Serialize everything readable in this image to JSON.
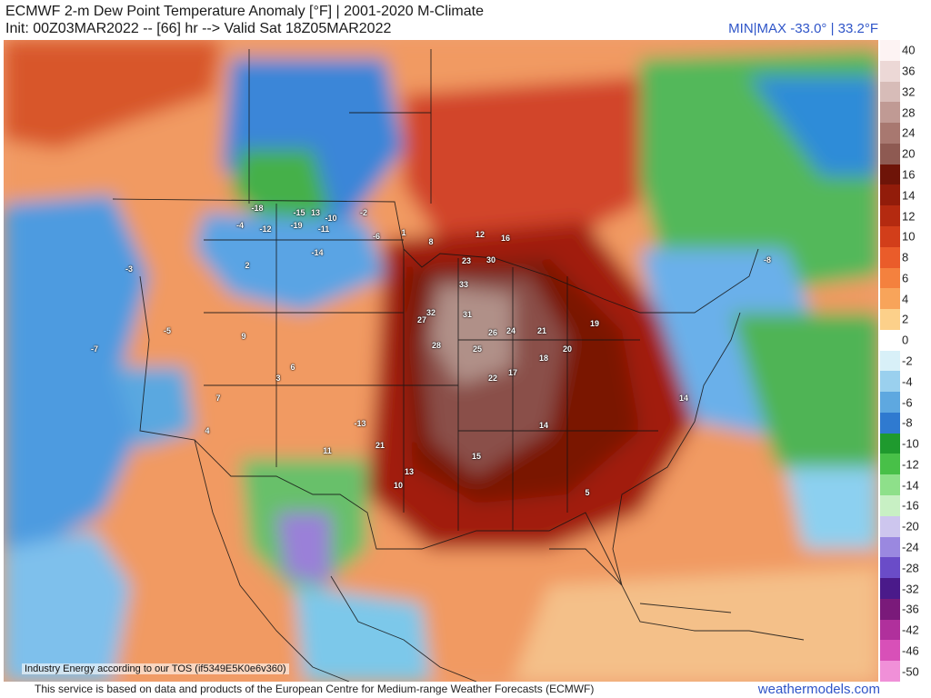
{
  "header": {
    "title": "ECMWF 2-m Dew Point Temperature Anomaly [°F] | 2001-2020 M-Climate",
    "init_line": "Init: 00Z03MAR2022 -- [66] hr --> Valid Sat 18Z05MAR2022",
    "minmax": "MIN|MAX -33.0° | 33.2°F"
  },
  "map": {
    "tos_notice": "Industry Energy according to our TOS (if5349E5K0e6v360)",
    "region": "North America",
    "labels": [
      {
        "text": "-18"
      },
      {
        "text": "-15"
      },
      {
        "text": "13"
      },
      {
        "text": "-10"
      },
      {
        "text": "-19"
      },
      {
        "text": "-14"
      },
      {
        "text": "-11"
      },
      {
        "text": "-12"
      },
      {
        "text": "-4"
      },
      {
        "text": "-6"
      },
      {
        "text": "-2"
      },
      {
        "text": "1"
      },
      {
        "text": "8"
      },
      {
        "text": "12"
      },
      {
        "text": "16"
      },
      {
        "text": "23"
      },
      {
        "text": "30"
      },
      {
        "text": "33"
      },
      {
        "text": "32"
      },
      {
        "text": "31"
      },
      {
        "text": "27"
      },
      {
        "text": "28"
      },
      {
        "text": "26"
      },
      {
        "text": "25"
      },
      {
        "text": "24"
      },
      {
        "text": "22"
      },
      {
        "text": "21"
      },
      {
        "text": "20"
      },
      {
        "text": "19"
      },
      {
        "text": "18"
      },
      {
        "text": "17"
      },
      {
        "text": "15"
      },
      {
        "text": "14"
      },
      {
        "text": "13"
      },
      {
        "text": "10"
      },
      {
        "text": "7"
      },
      {
        "text": "9"
      },
      {
        "text": "3"
      },
      {
        "text": "-5"
      },
      {
        "text": "-7"
      },
      {
        "text": "-13"
      },
      {
        "text": "11"
      },
      {
        "text": "21"
      },
      {
        "text": "6"
      },
      {
        "text": "5"
      },
      {
        "text": "14"
      },
      {
        "text": "-8"
      },
      {
        "text": "-3"
      },
      {
        "text": "2"
      },
      {
        "text": "4"
      }
    ]
  },
  "colorbar": {
    "levels": [
      "40",
      "36",
      "32",
      "28",
      "24",
      "20",
      "16",
      "14",
      "12",
      "10",
      "8",
      "6",
      "4",
      "2",
      "0",
      "-2",
      "-4",
      "-6",
      "-8",
      "-10",
      "-12",
      "-14",
      "-16",
      "-20",
      "-24",
      "-28",
      "-32",
      "-36",
      "-42",
      "-46",
      "-50"
    ],
    "colors": [
      "#fdf3f3",
      "#ecd8d6",
      "#d7bcb8",
      "#c09a94",
      "#a87870",
      "#8e5a52",
      "#6e1408",
      "#921c0a",
      "#b42a10",
      "#d23e1a",
      "#ea5c2a",
      "#f4813e",
      "#f8a45a",
      "#fcd08a",
      "#ffffff",
      "#d8f0f8",
      "#9ad0ee",
      "#5ea8e0",
      "#2f7ad0",
      "#1f9a2e",
      "#48c048",
      "#8ee08a",
      "#c8f0c4",
      "#cdc6ee",
      "#9a88e0",
      "#6a4cc8",
      "#4a1a8a",
      "#7a1a7a",
      "#b0309c",
      "#d850b8",
      "#f090d8"
    ]
  },
  "footer": {
    "notice": "This service is based on data and products of the European Centre for Medium-range Weather Forecasts (ECMWF)",
    "brand": "weathermodels.com"
  }
}
